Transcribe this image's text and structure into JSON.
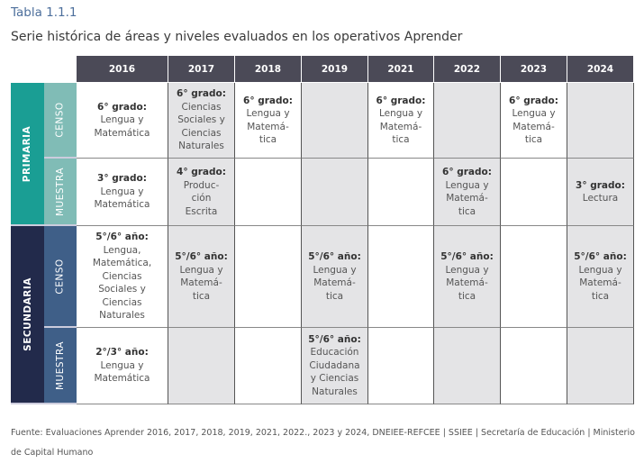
{
  "label": "Tabla 1.1.1",
  "title": "Serie histórica de áreas y niveles evaluados en los operativos Aprender",
  "years": [
    "2016",
    "2017",
    "2018",
    "2019",
    "2021",
    "2022",
    "2023",
    "2024"
  ],
  "levels": [
    {
      "name": "PRIMARIA",
      "color": "#1a9e94",
      "sub_color": "#80bcb6",
      "subs": [
        "CENSO",
        "MUESTRA"
      ]
    },
    {
      "name": "SECUNDARIA",
      "color": "#222a4b",
      "sub_color": "#3f5f88",
      "subs": [
        "CENSO",
        "MUESTRA"
      ]
    }
  ],
  "rows": [
    [
      {
        "h": "6° grado:",
        "t": "Lengua y\nMatemática"
      },
      {
        "h": "6° grado:",
        "t": "Ciencias\nSociales y\nCiencias\nNaturales"
      },
      {
        "h": "6° grado:",
        "t": "Lengua y\nMatemá-\ntica"
      },
      {
        "h": "",
        "t": ""
      },
      {
        "h": "6° grado:",
        "t": "Lengua y\nMatemá-\ntica"
      },
      {
        "h": "",
        "t": ""
      },
      {
        "h": "6° grado:",
        "t": "Lengua y\nMatemá-\ntica"
      },
      {
        "h": "",
        "t": ""
      }
    ],
    [
      {
        "h": "3° grado:",
        "t": "Lengua y\nMatemática"
      },
      {
        "h": "4° grado:",
        "t": "Produc-\nción\nEscrita"
      },
      {
        "h": "",
        "t": ""
      },
      {
        "h": "",
        "t": ""
      },
      {
        "h": "",
        "t": ""
      },
      {
        "h": "6° grado:",
        "t": "Lengua y\nMatemá-\ntica"
      },
      {
        "h": "",
        "t": ""
      },
      {
        "h": "3° grado:",
        "t": "Lectura"
      }
    ],
    [
      {
        "h": "5°/6° año:",
        "t": "Lengua,\nMatemática,\nCiencias\nSociales y\nCiencias\nNaturales"
      },
      {
        "h": "5°/6° año:",
        "t": "Lengua y\nMatemá-\ntica"
      },
      {
        "h": "",
        "t": ""
      },
      {
        "h": "5°/6° año:",
        "t": "Lengua y\nMatemá-\ntica"
      },
      {
        "h": "",
        "t": ""
      },
      {
        "h": "5°/6° año:",
        "t": "Lengua y\nMatemá-\ntica"
      },
      {
        "h": "",
        "t": ""
      },
      {
        "h": "5°/6° año:",
        "t": "Lengua y\nMatemá-\ntica"
      }
    ],
    [
      {
        "h": "2°/3° año:",
        "t": "Lengua y\nMatemática"
      },
      {
        "h": "",
        "t": ""
      },
      {
        "h": "",
        "t": ""
      },
      {
        "h": "5°/6° año:",
        "t": "Educación\nCiudadana\ny Ciencias\nNaturales"
      },
      {
        "h": "",
        "t": ""
      },
      {
        "h": "",
        "t": ""
      },
      {
        "h": "",
        "t": ""
      },
      {
        "h": "",
        "t": ""
      }
    ]
  ],
  "source": "Fuente: Evaluaciones Aprender 2016, 2017, 2018, 2019, 2021, 2022., 2023 y 2024, DNEIEE-REFCEE | SSIEE | Secretaría de Educación | Ministerio de Capital Humano"
}
